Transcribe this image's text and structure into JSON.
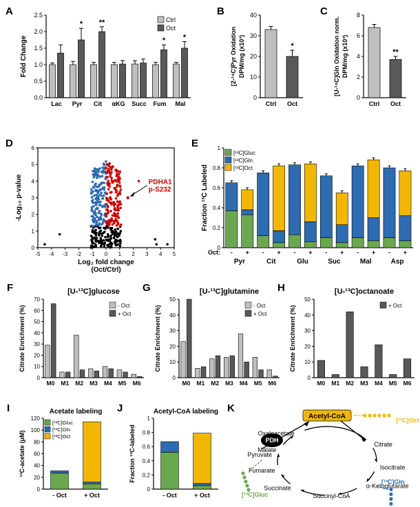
{
  "colors": {
    "ctrl": "#bfbfbf",
    "oct": "#595959",
    "green": "#6aa84f",
    "blue": "#2e6bb0",
    "yellow": "#f2b705",
    "volc_blue": "#2e6bb0",
    "volc_red": "#cc0000",
    "volc_black": "#000000",
    "axis": "#000000",
    "cyc_bg": "#ffffff",
    "cyc_ac": "#f2b705"
  },
  "A": {
    "label": "A",
    "ylabel": "Fold Change",
    "yticks": [
      0,
      0.5,
      1.0,
      1.5,
      2.0,
      2.5
    ],
    "legend": [
      "Ctrl",
      "Oct"
    ],
    "categories": [
      "Lac",
      "Pyr",
      "Cit",
      "αKG",
      "Succ",
      "Fum",
      "Mal"
    ],
    "ctrl": [
      1.0,
      1.0,
      1.0,
      1.0,
      1.02,
      1.0,
      1.02
    ],
    "oct": [
      1.35,
      1.75,
      2.0,
      1.02,
      1.05,
      1.45,
      1.5
    ],
    "ctrl_err": [
      0.05,
      0.1,
      0.07,
      0.07,
      0.1,
      0.07,
      0.05
    ],
    "oct_err": [
      0.25,
      0.35,
      0.15,
      0.1,
      0.12,
      0.15,
      0.2
    ],
    "stars": [
      "",
      "*",
      "**",
      "",
      "",
      "*",
      "*"
    ]
  },
  "B": {
    "label": "B",
    "ylabel": "[2-¹⁴C]Pyr Oxidation DPM/mg (x10³)",
    "yticks": [
      0,
      10,
      20,
      30,
      40
    ],
    "cats": [
      "Ctrl",
      "Oct"
    ],
    "vals": [
      33,
      20
    ],
    "err": [
      1.5,
      3
    ],
    "star": "*"
  },
  "C": {
    "label": "C",
    "ylabel": "[U-¹⁴C]Gln Oxidation norm. DPM/mg (x10³)",
    "yticks": [
      0,
      2,
      4,
      6,
      8
    ],
    "cats": [
      "Ctrl",
      "Oct"
    ],
    "vals": [
      6.8,
      3.7
    ],
    "err": [
      0.3,
      0.3
    ],
    "star": "**"
  },
  "D": {
    "label": "D",
    "xlabel": "Log₂ fold change\n(Oct/Ctrl)",
    "ylabel": "-Log₁₀ p-value",
    "xlim": [
      -5,
      5
    ],
    "ylim": [
      0,
      6
    ],
    "xticks": [
      -5,
      -4,
      -3,
      -2,
      -1,
      0,
      1,
      2,
      3,
      4,
      5
    ],
    "yticks": [
      0,
      1,
      2,
      3,
      4,
      5,
      6
    ],
    "annot": "PDHA1\np-S232"
  },
  "E": {
    "label": "E",
    "ylabel": "Fraction ¹³C Labeled",
    "yticks": [
      0,
      0.2,
      0.4,
      0.6,
      0.8,
      1
    ],
    "legend": [
      "[¹³C]Gluc",
      "[¹³C]Gln",
      "[¹³C]Oct"
    ],
    "categories": [
      "Pyr",
      "Cit",
      "Glu",
      "Suc",
      "Mal",
      "Asp"
    ],
    "oct_state": [
      "-",
      "+",
      "-",
      "+",
      "-",
      "+",
      "-",
      "+",
      "-",
      "+",
      "-",
      "+"
    ],
    "data": [
      {
        "g": 0.37,
        "b": 0.28,
        "y": 0.0
      },
      {
        "g": 0.33,
        "b": 0.05,
        "y": 0.2
      },
      {
        "g": 0.12,
        "b": 0.63,
        "y": 0.0
      },
      {
        "g": 0.05,
        "b": 0.12,
        "y": 0.65
      },
      {
        "g": 0.13,
        "b": 0.7,
        "y": 0.0
      },
      {
        "g": 0.06,
        "b": 0.2,
        "y": 0.58
      },
      {
        "g": 0.1,
        "b": 0.62,
        "y": 0.0
      },
      {
        "g": 0.05,
        "b": 0.18,
        "y": 0.32
      },
      {
        "g": 0.1,
        "b": 0.72,
        "y": 0.0
      },
      {
        "g": 0.07,
        "b": 0.23,
        "y": 0.58
      },
      {
        "g": 0.1,
        "b": 0.7,
        "y": 0.0
      },
      {
        "g": 0.07,
        "b": 0.25,
        "y": 0.45
      }
    ]
  },
  "F": {
    "label": "F",
    "title": "[U-¹³C]glucose",
    "ylabel": "Citrate Enrichment (%)",
    "yticks": [
      0,
      10,
      20,
      30,
      40,
      50,
      60,
      70
    ],
    "cats": [
      "M0",
      "M1",
      "M2",
      "M3",
      "M4",
      "M5",
      "M6"
    ],
    "legend": [
      "- Oct",
      "+ Oct"
    ],
    "minus": [
      29,
      5,
      38,
      8,
      10,
      7,
      3
    ],
    "plus": [
      66,
      5,
      7,
      6,
      8,
      5,
      1
    ]
  },
  "G": {
    "label": "G",
    "title": "[U-¹³C]glutamine",
    "ylabel": "Citrate Enrichment (%)",
    "yticks": [
      0,
      10,
      20,
      30,
      40,
      50
    ],
    "cats": [
      "M0",
      "M1",
      "M2",
      "M3",
      "M4",
      "M5",
      "M6"
    ],
    "legend": [
      "- Oct",
      "+ Oct"
    ],
    "minus": [
      23,
      6,
      12,
      13,
      28,
      13,
      5
    ],
    "plus": [
      50,
      7,
      14,
      14,
      10,
      5,
      1
    ]
  },
  "H": {
    "label": "H",
    "title": "[U-¹³C]octanoate",
    "ylabel": "Citrate Enrichment (%)",
    "yticks": [
      0,
      10,
      20,
      30,
      40,
      50
    ],
    "cats": [
      "M0",
      "M1",
      "M2",
      "M3",
      "M4",
      "M5",
      "M6"
    ],
    "legend": [
      "+ Oct"
    ],
    "plus": [
      11,
      2,
      42,
      7,
      21,
      2,
      12
    ]
  },
  "I": {
    "label": "I",
    "title": "Acetate labeling",
    "ylabel": "¹³C-acetate (μM)",
    "yticks": [
      0,
      20,
      40,
      60,
      80,
      100,
      120
    ],
    "legend": [
      "[¹³C]Gluc",
      "[¹³C]Gln",
      "[¹³C]Oct"
    ],
    "cats": [
      "- Oct",
      "+ Oct"
    ],
    "data": [
      {
        "g": 27,
        "b": 4,
        "y": 0
      },
      {
        "g": 9,
        "b": 3,
        "y": 102
      }
    ]
  },
  "J": {
    "label": "J",
    "title": "Acetyl-CoA labeling",
    "ylabel": "Fraction ¹³C-labeled",
    "yticks": [
      0,
      0.2,
      0.4,
      0.6,
      0.8,
      1
    ],
    "cats": [
      "- Oct",
      "+ Oct"
    ],
    "data": [
      {
        "g": 0.52,
        "b": 0.15,
        "y": 0.0
      },
      {
        "g": 0.05,
        "b": 0.03,
        "y": 0.71
      }
    ]
  },
  "K": {
    "label": "K",
    "nodes": [
      "Acetyl-CoA",
      "Citrate",
      "Isocitrate",
      "α-Ketoglutarate",
      "Succinyl-CoA",
      "Succinate",
      "Fumarate",
      "Malate",
      "Oxaloacetate",
      "Pyruvate"
    ],
    "enzyme": "PDH",
    "legend": [
      "[¹³C]Oct",
      "[¹³C]Gln",
      "[¹³C]Gluc"
    ]
  }
}
